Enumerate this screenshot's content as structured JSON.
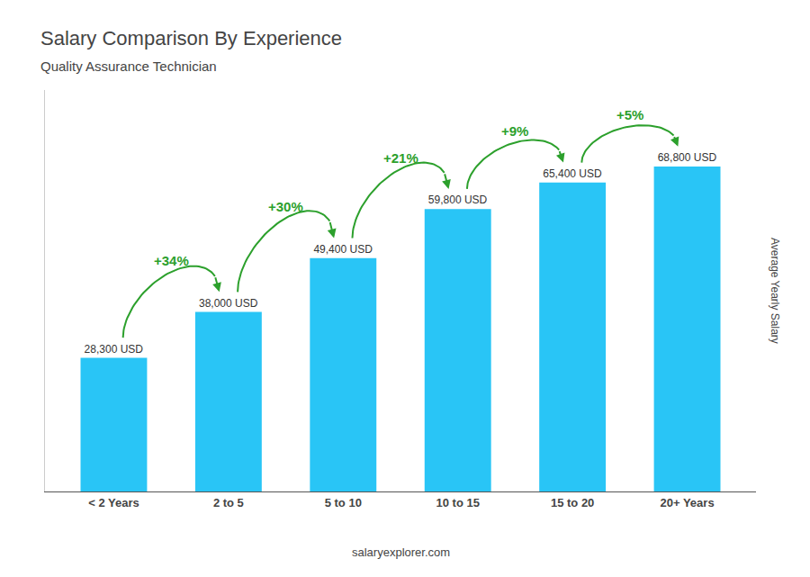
{
  "chart_data": {
    "type": "bar",
    "title": "Salary Comparison By Experience",
    "subtitle": "Quality Assurance Technician",
    "categories": [
      "< 2 Years",
      "2 to 5",
      "5 to 10",
      "10 to 15",
      "15 to 20",
      "20+ Years"
    ],
    "values": [
      28300,
      38000,
      49400,
      59800,
      65400,
      68800
    ],
    "value_labels": [
      "28,300 USD",
      "38,000 USD",
      "49,400 USD",
      "59,800 USD",
      "65,400 USD",
      "68,800 USD"
    ],
    "data_labels": true,
    "annotations": [
      "+34%",
      "+30%",
      "+21%",
      "+9%",
      "+5%"
    ],
    "ylabel": "Average Yearly Salary",
    "source": "salaryexplorer.com",
    "color": "#29c5f6",
    "ylim": [
      0,
      85000
    ],
    "tick_labels": "x",
    "grid": false
  }
}
